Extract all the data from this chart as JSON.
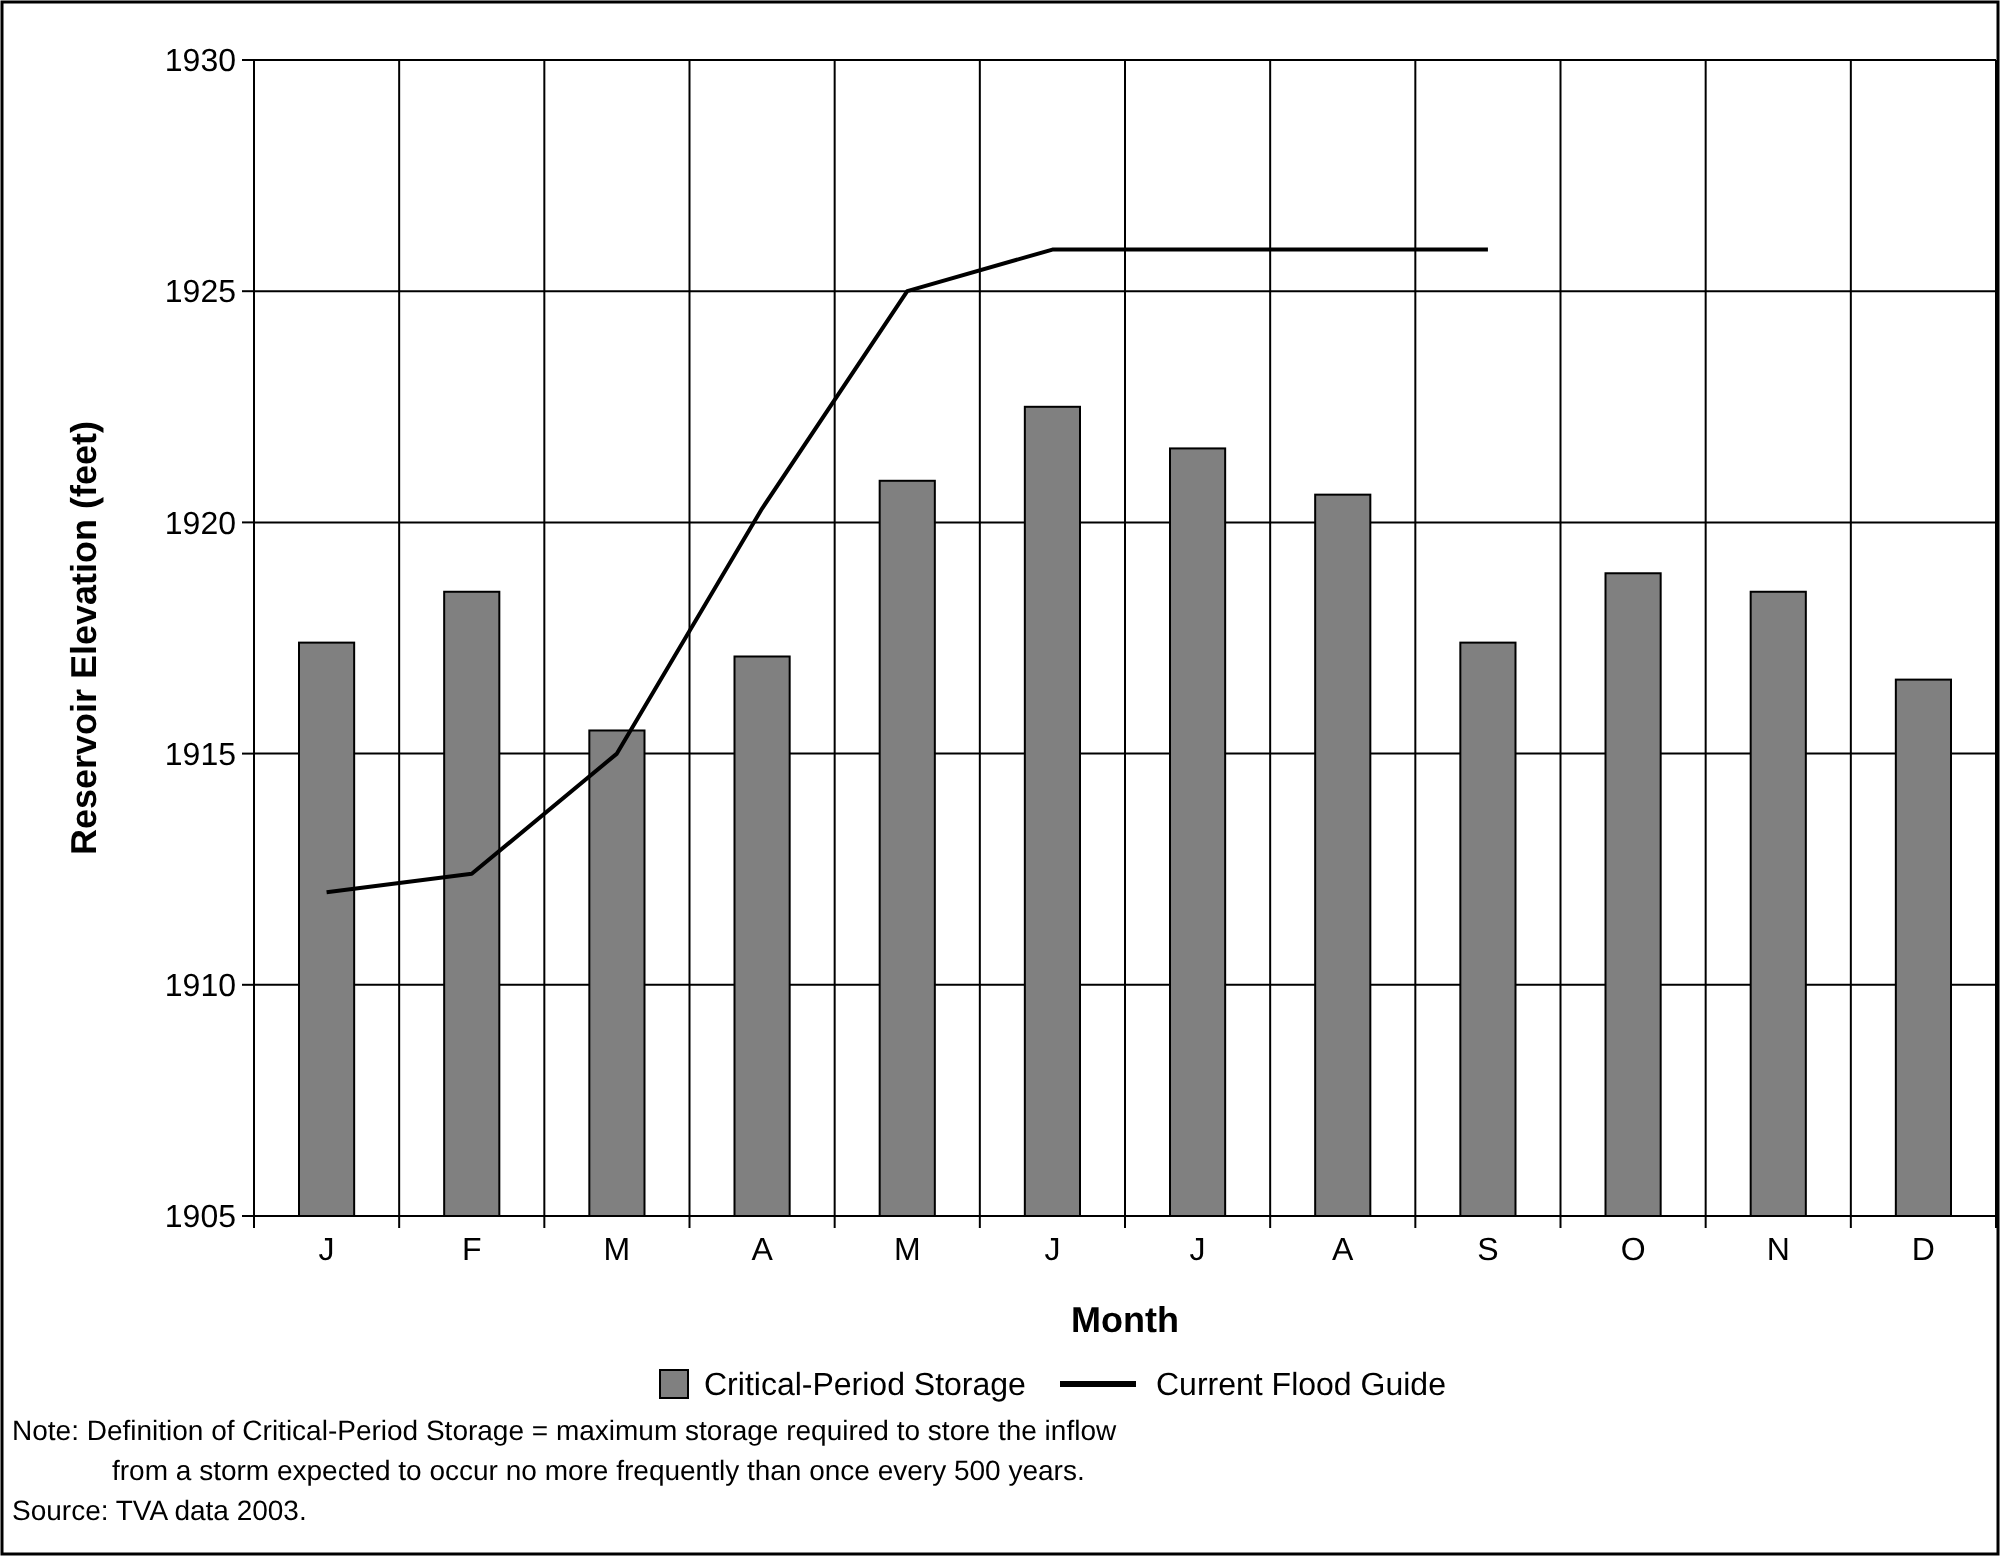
{
  "chart_data": {
    "type": "bar",
    "xlabel": "Month",
    "ylabel": "Reservoir Elevation (feet)",
    "categories": [
      "J",
      "F",
      "M",
      "A",
      "M",
      "J",
      "J",
      "A",
      "S",
      "O",
      "N",
      "D"
    ],
    "series": [
      {
        "name": "Critical-Period Storage",
        "color": "#808080",
        "values": [
          1917.4,
          1918.5,
          1915.5,
          1917.1,
          1920.9,
          1922.5,
          1921.6,
          1920.6,
          1917.4,
          1918.9,
          1918.5,
          1916.6
        ]
      },
      {
        "name": "Current Flood Guide",
        "type": "line",
        "color": "#000000",
        "values": [
          1912,
          1912.4,
          1915,
          1920.3,
          1925,
          1925.9,
          1925.9,
          1925.9,
          1925.9,
          null,
          null,
          null
        ]
      }
    ],
    "ylim": [
      1905,
      1930
    ],
    "yticks": [
      1905,
      1910,
      1915,
      1920,
      1925,
      1930
    ],
    "grid": true,
    "legend": "bottom",
    "annotations": [
      "Note:  Definition of Critical-Period Storage = maximum storage required to store the inflow from a storm expected to occur no more frequently than once every 500 years.",
      "Source:  TVA data 2003."
    ]
  }
}
